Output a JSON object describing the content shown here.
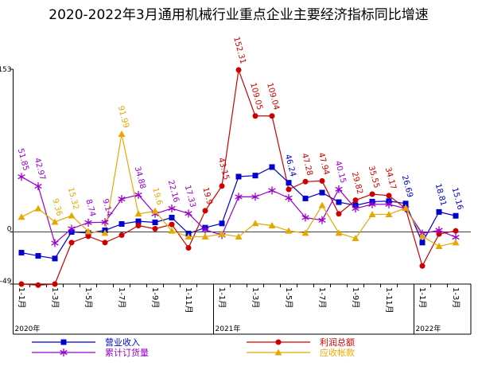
{
  "chart_data": {
    "type": "line",
    "title": "2020-2022年3月通用机械行业重点企业主要经济指标同比增速",
    "categories": [
      "1-1月",
      null,
      "1-3月",
      null,
      "1-5月",
      null,
      "1-7月",
      null,
      "1-9月",
      null,
      "1-11月",
      null,
      "1-1月",
      null,
      "1-3月",
      null,
      "1-5月",
      null,
      "1-7月",
      null,
      "1-9月",
      null,
      "1-11月",
      null,
      "1-1月",
      null,
      "1-3月"
    ],
    "x_groups": [
      "2020年",
      "2021年",
      "2022年"
    ],
    "ylim": [
      -49,
      153
    ],
    "yticks": [
      -49,
      0,
      153
    ],
    "series": [
      {
        "name": "营业收入",
        "color": "#0000cc",
        "marker": "square",
        "values": [
          -19.5,
          -22.5,
          -25,
          0,
          -1,
          1.5,
          7.5,
          10,
          9,
          13.5,
          -1.5,
          4,
          8,
          52,
          53,
          61,
          46.24,
          31.5,
          37,
          28,
          25,
          28.5,
          29,
          26.69,
          -10,
          18.81,
          15.16
        ],
        "value_labels": [
          null,
          null,
          null,
          null,
          null,
          null,
          null,
          null,
          null,
          null,
          null,
          null,
          null,
          null,
          null,
          null,
          "46.24",
          null,
          null,
          null,
          null,
          null,
          null,
          "26.69",
          null,
          "18.81",
          "15.16"
        ]
      },
      {
        "name": "利润总额",
        "color": "#cc0000",
        "marker": "circle",
        "values": [
          -49,
          -50,
          -49,
          -10,
          -4,
          -10,
          -3,
          6,
          3,
          7,
          -15,
          19.9,
          43.15,
          152.31,
          109.05,
          109.04,
          40,
          47.28,
          47.94,
          17,
          29.82,
          35.55,
          34.17,
          22,
          -32,
          -2,
          1
        ],
        "value_labels": [
          null,
          null,
          null,
          null,
          null,
          null,
          null,
          null,
          null,
          null,
          null,
          "19.9",
          "43.15",
          "152.31",
          "109.05",
          "109.04",
          null,
          "47.28",
          "47.94",
          null,
          "29.82",
          "35.55",
          "34.17",
          null,
          null,
          null,
          null
        ]
      },
      {
        "name": "累计订货量",
        "color": "#9900cc",
        "marker": "star",
        "values": [
          51.85,
          42.97,
          -10.5,
          3,
          8.74,
          9.14,
          31,
          34.88,
          17,
          22.16,
          17.33,
          2,
          -3,
          33,
          33,
          39,
          32,
          13.5,
          11,
          40.15,
          22,
          26,
          26,
          22,
          -1.5,
          1.5,
          -5
        ],
        "value_labels": [
          "51.85",
          "42.97",
          null,
          null,
          "8.74",
          "9.14",
          null,
          "34.88",
          null,
          "22.16",
          "17.33",
          null,
          null,
          null,
          null,
          null,
          null,
          null,
          null,
          "40.15",
          null,
          null,
          null,
          null,
          null,
          null,
          null
        ]
      },
      {
        "name": "应收帐款",
        "color": "#e6a800",
        "marker": "triangle",
        "values": [
          14,
          22,
          9.36,
          15.32,
          0.5,
          -1,
          91.99,
          17,
          19.6,
          1,
          -4.5,
          -4.5,
          -2,
          -4.5,
          8,
          6,
          1,
          -1,
          25,
          -1,
          -6,
          16.5,
          16.5,
          22.5,
          -4,
          -13.5,
          -10
        ],
        "value_labels": [
          null,
          null,
          "9.36",
          "15.32",
          null,
          null,
          "91.99",
          null,
          "19.6",
          null,
          null,
          null,
          null,
          null,
          null,
          null,
          null,
          null,
          null,
          null,
          null,
          null,
          null,
          null,
          null,
          null,
          null
        ]
      }
    ]
  }
}
